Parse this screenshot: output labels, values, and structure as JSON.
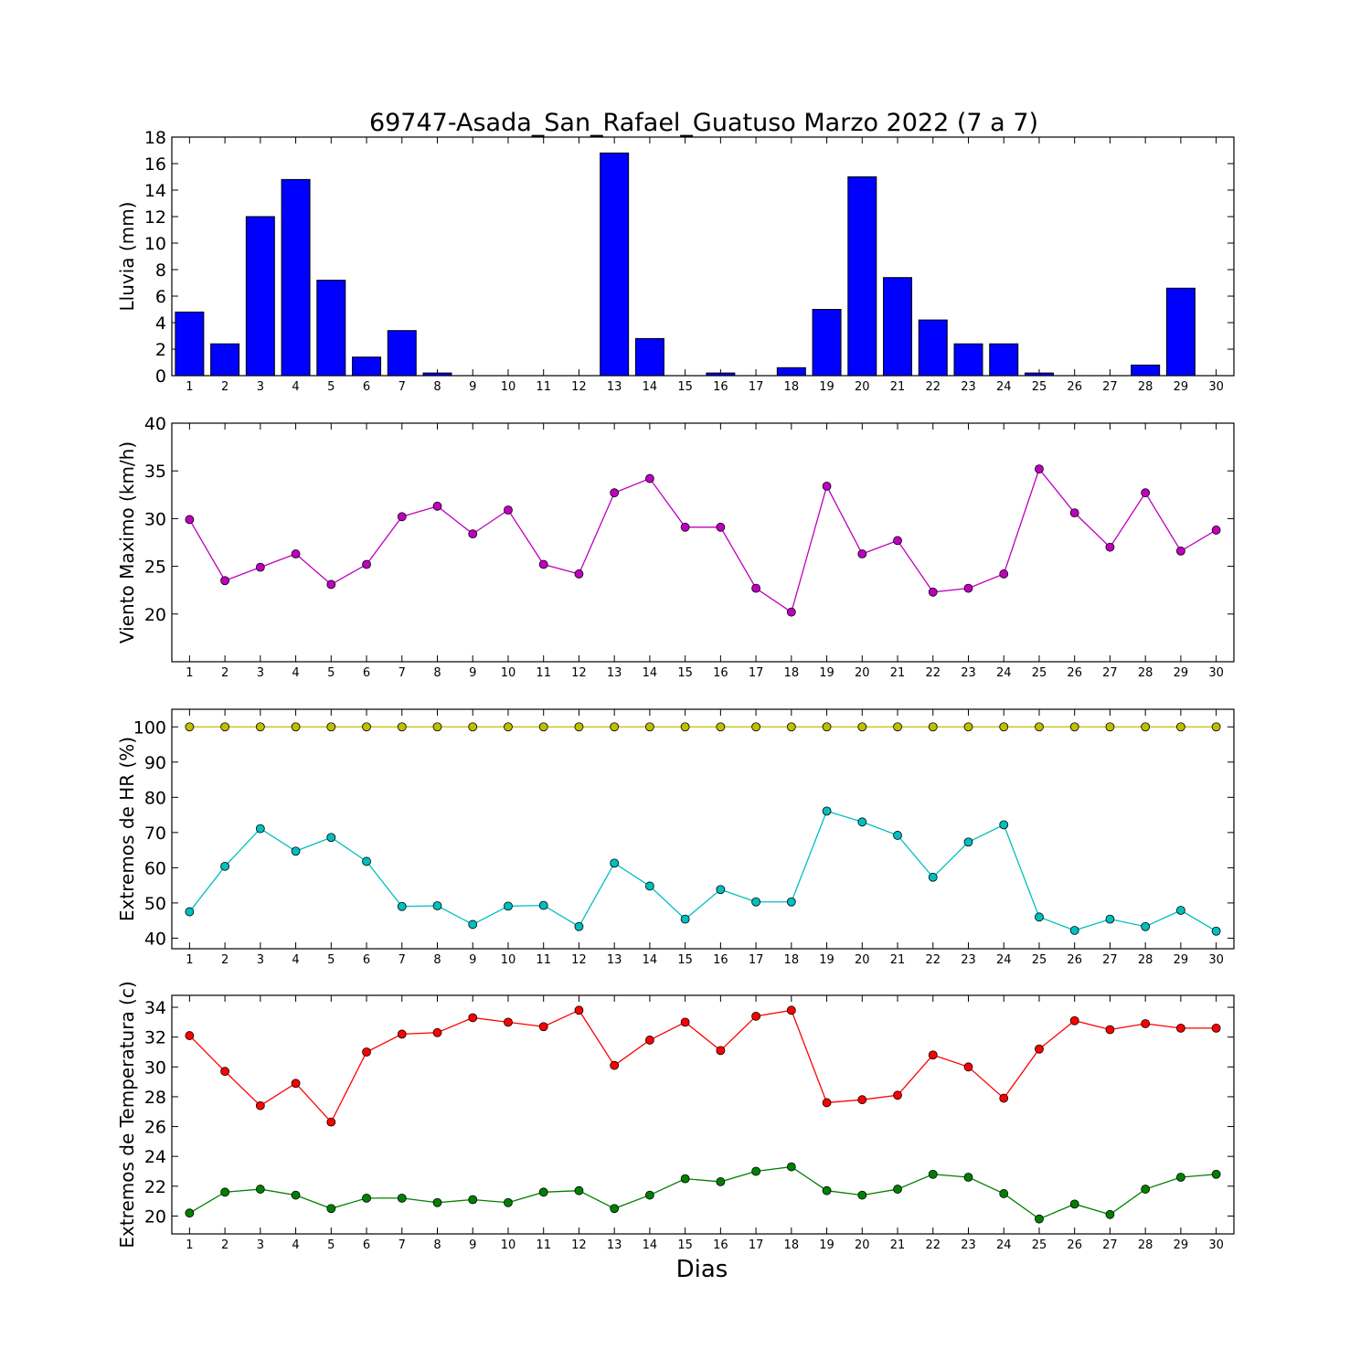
{
  "figure": {
    "title": "69747-Asada_San_Rafael_Guatuso Marzo 2022  (7 a 7)",
    "xlabel": "Dias"
  },
  "chart_data": [
    {
      "type": "bar",
      "ylabel": "Lluvia (mm)",
      "ylim": [
        0,
        18
      ],
      "yticks": [
        0,
        2,
        4,
        6,
        8,
        10,
        12,
        14,
        16,
        18
      ],
      "categories": [
        1,
        2,
        3,
        4,
        5,
        6,
        7,
        8,
        9,
        10,
        11,
        12,
        13,
        14,
        15,
        16,
        17,
        18,
        19,
        20,
        21,
        22,
        23,
        24,
        25,
        26,
        27,
        28,
        29,
        30
      ],
      "series": [
        {
          "color": "#0000ff",
          "values": [
            4.8,
            2.4,
            12.0,
            14.8,
            7.2,
            1.4,
            3.4,
            0.2,
            0,
            0,
            0,
            0,
            16.8,
            2.8,
            0,
            0.2,
            0,
            0.6,
            5.0,
            15.0,
            7.4,
            4.2,
            2.4,
            2.4,
            0.2,
            0,
            0,
            0.8,
            6.6,
            0
          ]
        }
      ]
    },
    {
      "type": "line",
      "ylabel": "Viento Maximo (km/h)",
      "ylim": [
        15,
        40
      ],
      "yticks": [
        20,
        25,
        30,
        35,
        40
      ],
      "x": [
        1,
        2,
        3,
        4,
        5,
        6,
        7,
        8,
        9,
        10,
        11,
        12,
        13,
        14,
        15,
        16,
        17,
        18,
        19,
        20,
        21,
        22,
        23,
        24,
        25,
        26,
        27,
        28,
        29,
        30
      ],
      "series": [
        {
          "color": "#bf00bf",
          "values": [
            29.9,
            23.5,
            24.9,
            26.3,
            23.1,
            25.2,
            30.2,
            31.3,
            28.4,
            30.9,
            25.2,
            24.2,
            32.7,
            34.2,
            29.1,
            29.1,
            22.7,
            20.2,
            33.4,
            26.3,
            27.7,
            22.3,
            22.7,
            24.2,
            35.2,
            30.6,
            27.0,
            32.7,
            26.6,
            28.8
          ]
        }
      ]
    },
    {
      "type": "line",
      "ylabel": "Extremos de HR (%)",
      "ylim": [
        37,
        105
      ],
      "yticks": [
        40,
        50,
        60,
        70,
        80,
        90,
        100
      ],
      "x": [
        1,
        2,
        3,
        4,
        5,
        6,
        7,
        8,
        9,
        10,
        11,
        12,
        13,
        14,
        15,
        16,
        17,
        18,
        19,
        20,
        21,
        22,
        23,
        24,
        25,
        26,
        27,
        28,
        29,
        30
      ],
      "series": [
        {
          "color": "#bfbf00",
          "values": [
            100,
            100,
            100,
            100,
            100,
            100,
            100,
            100,
            100,
            100,
            100,
            100,
            100,
            100,
            100,
            100,
            100,
            100,
            100,
            100,
            100,
            100,
            100,
            100,
            100,
            100,
            100,
            100,
            100,
            100
          ]
        },
        {
          "color": "#00bfbf",
          "values": [
            47.5,
            60.4,
            71.1,
            64.7,
            68.6,
            61.8,
            49.0,
            49.2,
            43.9,
            49.1,
            49.3,
            43.3,
            61.3,
            54.8,
            45.4,
            53.8,
            50.3,
            50.3,
            76.1,
            73.0,
            69.2,
            57.3,
            67.3,
            72.2,
            46.0,
            42.2,
            45.4,
            43.3,
            47.9,
            42.0
          ]
        }
      ]
    },
    {
      "type": "line",
      "ylabel": "Extremos de Temperatura (c)",
      "ylim": [
        18.8,
        34.8
      ],
      "yticks": [
        20,
        22,
        24,
        26,
        28,
        30,
        32,
        34
      ],
      "x": [
        1,
        2,
        3,
        4,
        5,
        6,
        7,
        8,
        9,
        10,
        11,
        12,
        13,
        14,
        15,
        16,
        17,
        18,
        19,
        20,
        21,
        22,
        23,
        24,
        25,
        26,
        27,
        28,
        29,
        30
      ],
      "series": [
        {
          "color": "#ff0000",
          "values": [
            32.1,
            29.7,
            27.4,
            28.9,
            26.3,
            31.0,
            32.2,
            32.3,
            33.3,
            33.0,
            32.7,
            33.8,
            30.1,
            31.8,
            33.0,
            31.1,
            33.4,
            33.8,
            27.6,
            27.8,
            28.1,
            30.8,
            30.0,
            27.9,
            31.2,
            33.1,
            32.5,
            32.9,
            32.6,
            32.6
          ]
        },
        {
          "color": "#008000",
          "values": [
            20.2,
            21.6,
            21.8,
            21.4,
            20.5,
            21.2,
            21.2,
            20.9,
            21.1,
            20.9,
            21.6,
            21.7,
            20.5,
            21.4,
            22.5,
            22.3,
            23.0,
            23.3,
            21.7,
            21.4,
            21.8,
            22.8,
            22.6,
            21.5,
            19.8,
            20.8,
            20.1,
            21.8,
            22.6,
            22.8
          ]
        }
      ]
    }
  ]
}
